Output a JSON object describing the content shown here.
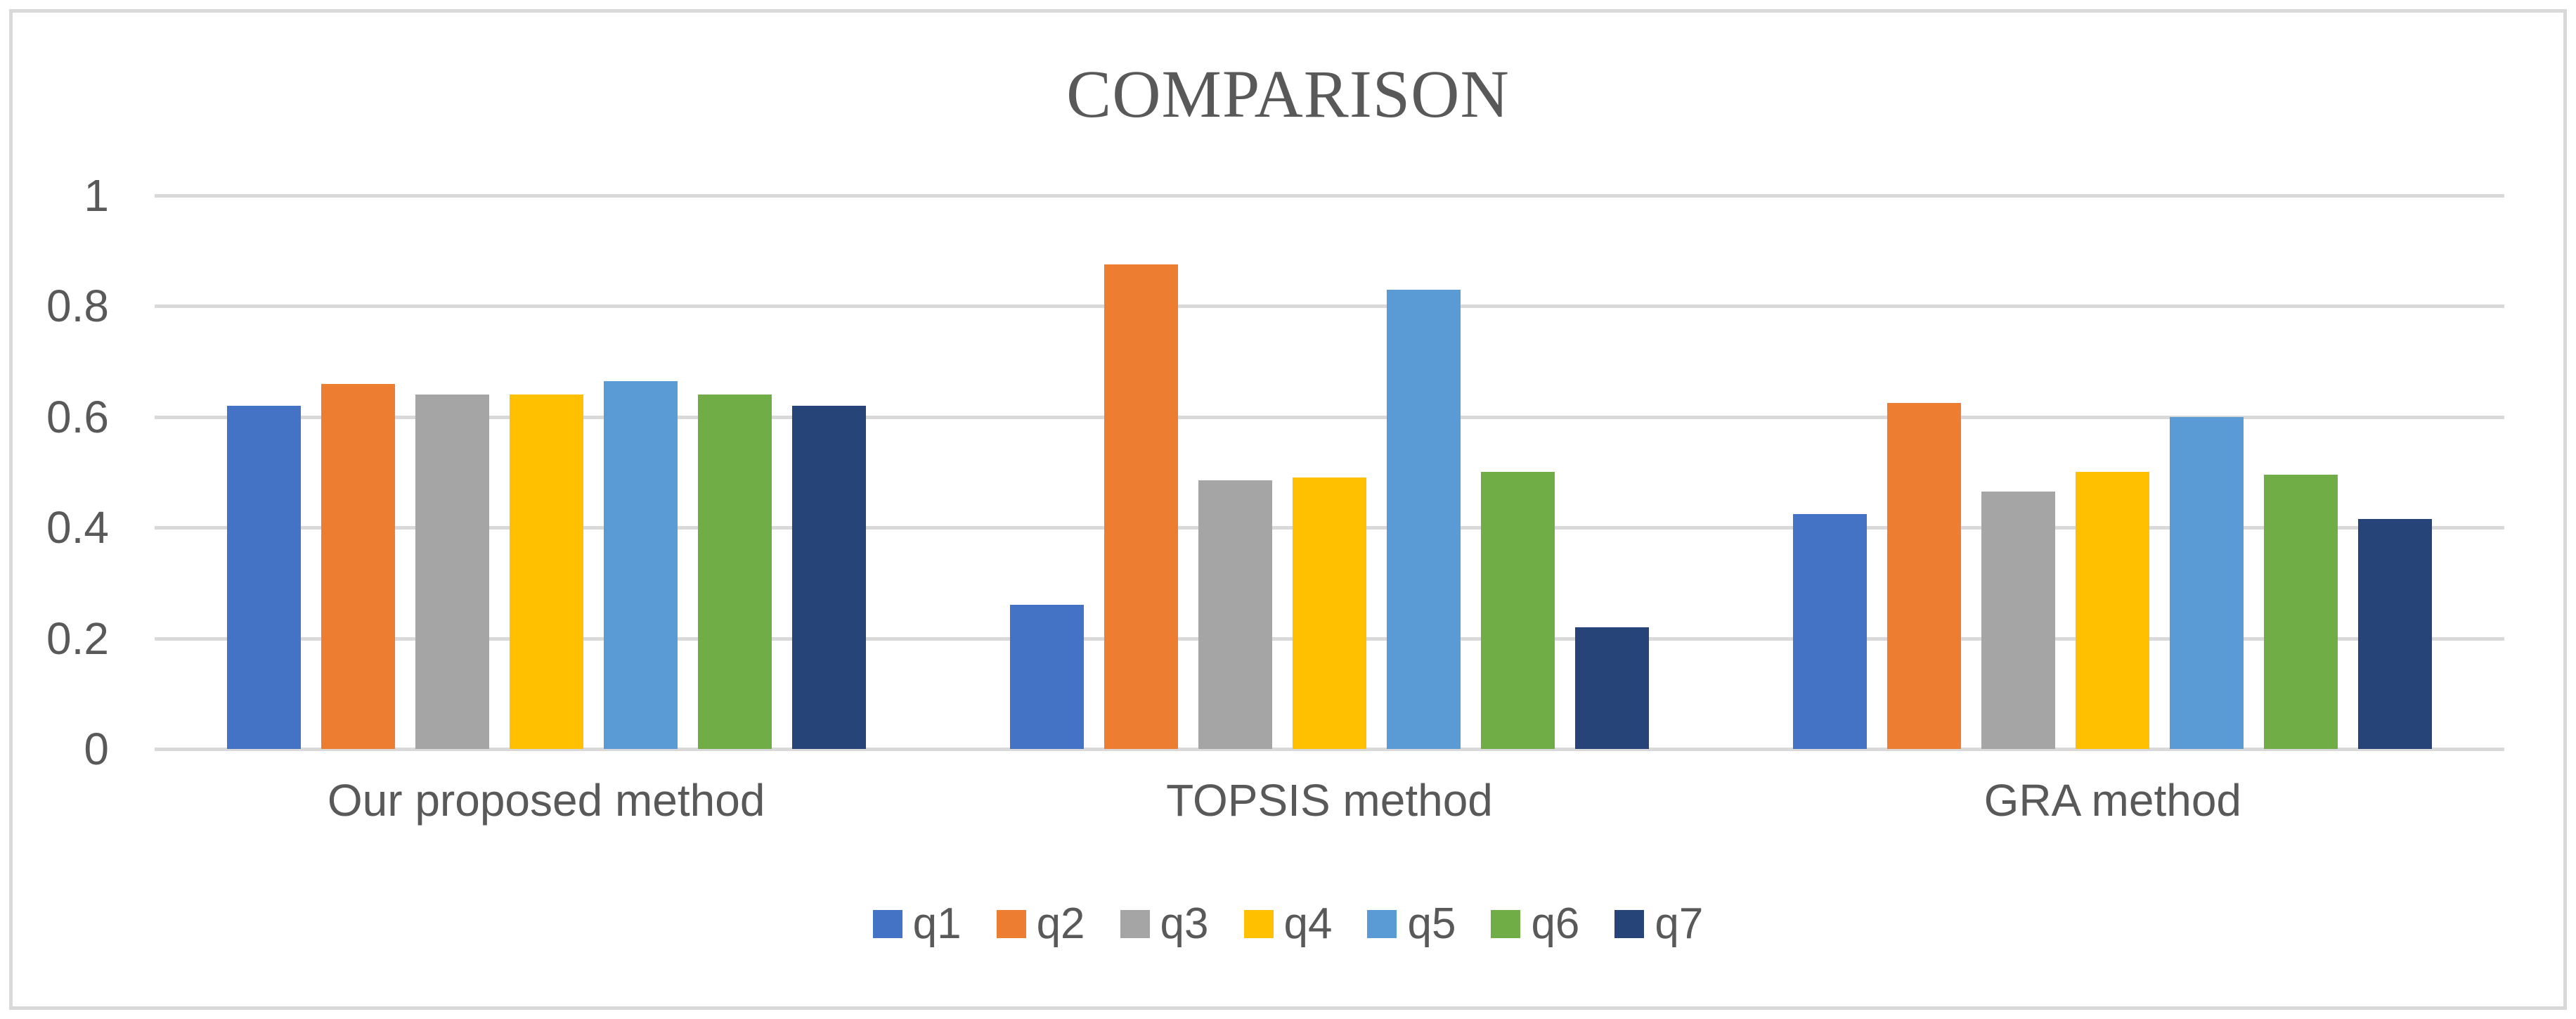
{
  "chart_data": {
    "type": "bar",
    "title": "COMPARISON",
    "categories": [
      "Our proposed method",
      "TOPSIS method",
      "GRA method"
    ],
    "series": [
      {
        "name": "q1",
        "color": "#4472C4",
        "values": [
          0.62,
          0.26,
          0.425
        ]
      },
      {
        "name": "q2",
        "color": "#ED7D31",
        "values": [
          0.66,
          0.875,
          0.625
        ]
      },
      {
        "name": "q3",
        "color": "#A5A5A5",
        "values": [
          0.64,
          0.485,
          0.465
        ]
      },
      {
        "name": "q4",
        "color": "#FFC000",
        "values": [
          0.64,
          0.49,
          0.5
        ]
      },
      {
        "name": "q5",
        "color": "#5B9BD5",
        "values": [
          0.665,
          0.83,
          0.6
        ]
      },
      {
        "name": "q6",
        "color": "#70AD47",
        "values": [
          0.64,
          0.5,
          0.495
        ]
      },
      {
        "name": "q7",
        "color": "#264478",
        "values": [
          0.62,
          0.22,
          0.415
        ]
      }
    ],
    "xlabel": "",
    "ylabel": "",
    "ylim": [
      0,
      1
    ],
    "yticks": [
      1,
      0.8,
      0.6,
      0.4,
      0.2,
      0
    ],
    "ytick_labels": [
      "1",
      "0.8",
      "0.6",
      "0.4",
      "0.2",
      "0"
    ],
    "grid": true,
    "legend_position": "bottom"
  },
  "style": {
    "text_color": "#595959",
    "gridline_color": "#D9D9D9",
    "frame_border_color": "#D9D9D9",
    "background_color": "#FFFFFF"
  }
}
